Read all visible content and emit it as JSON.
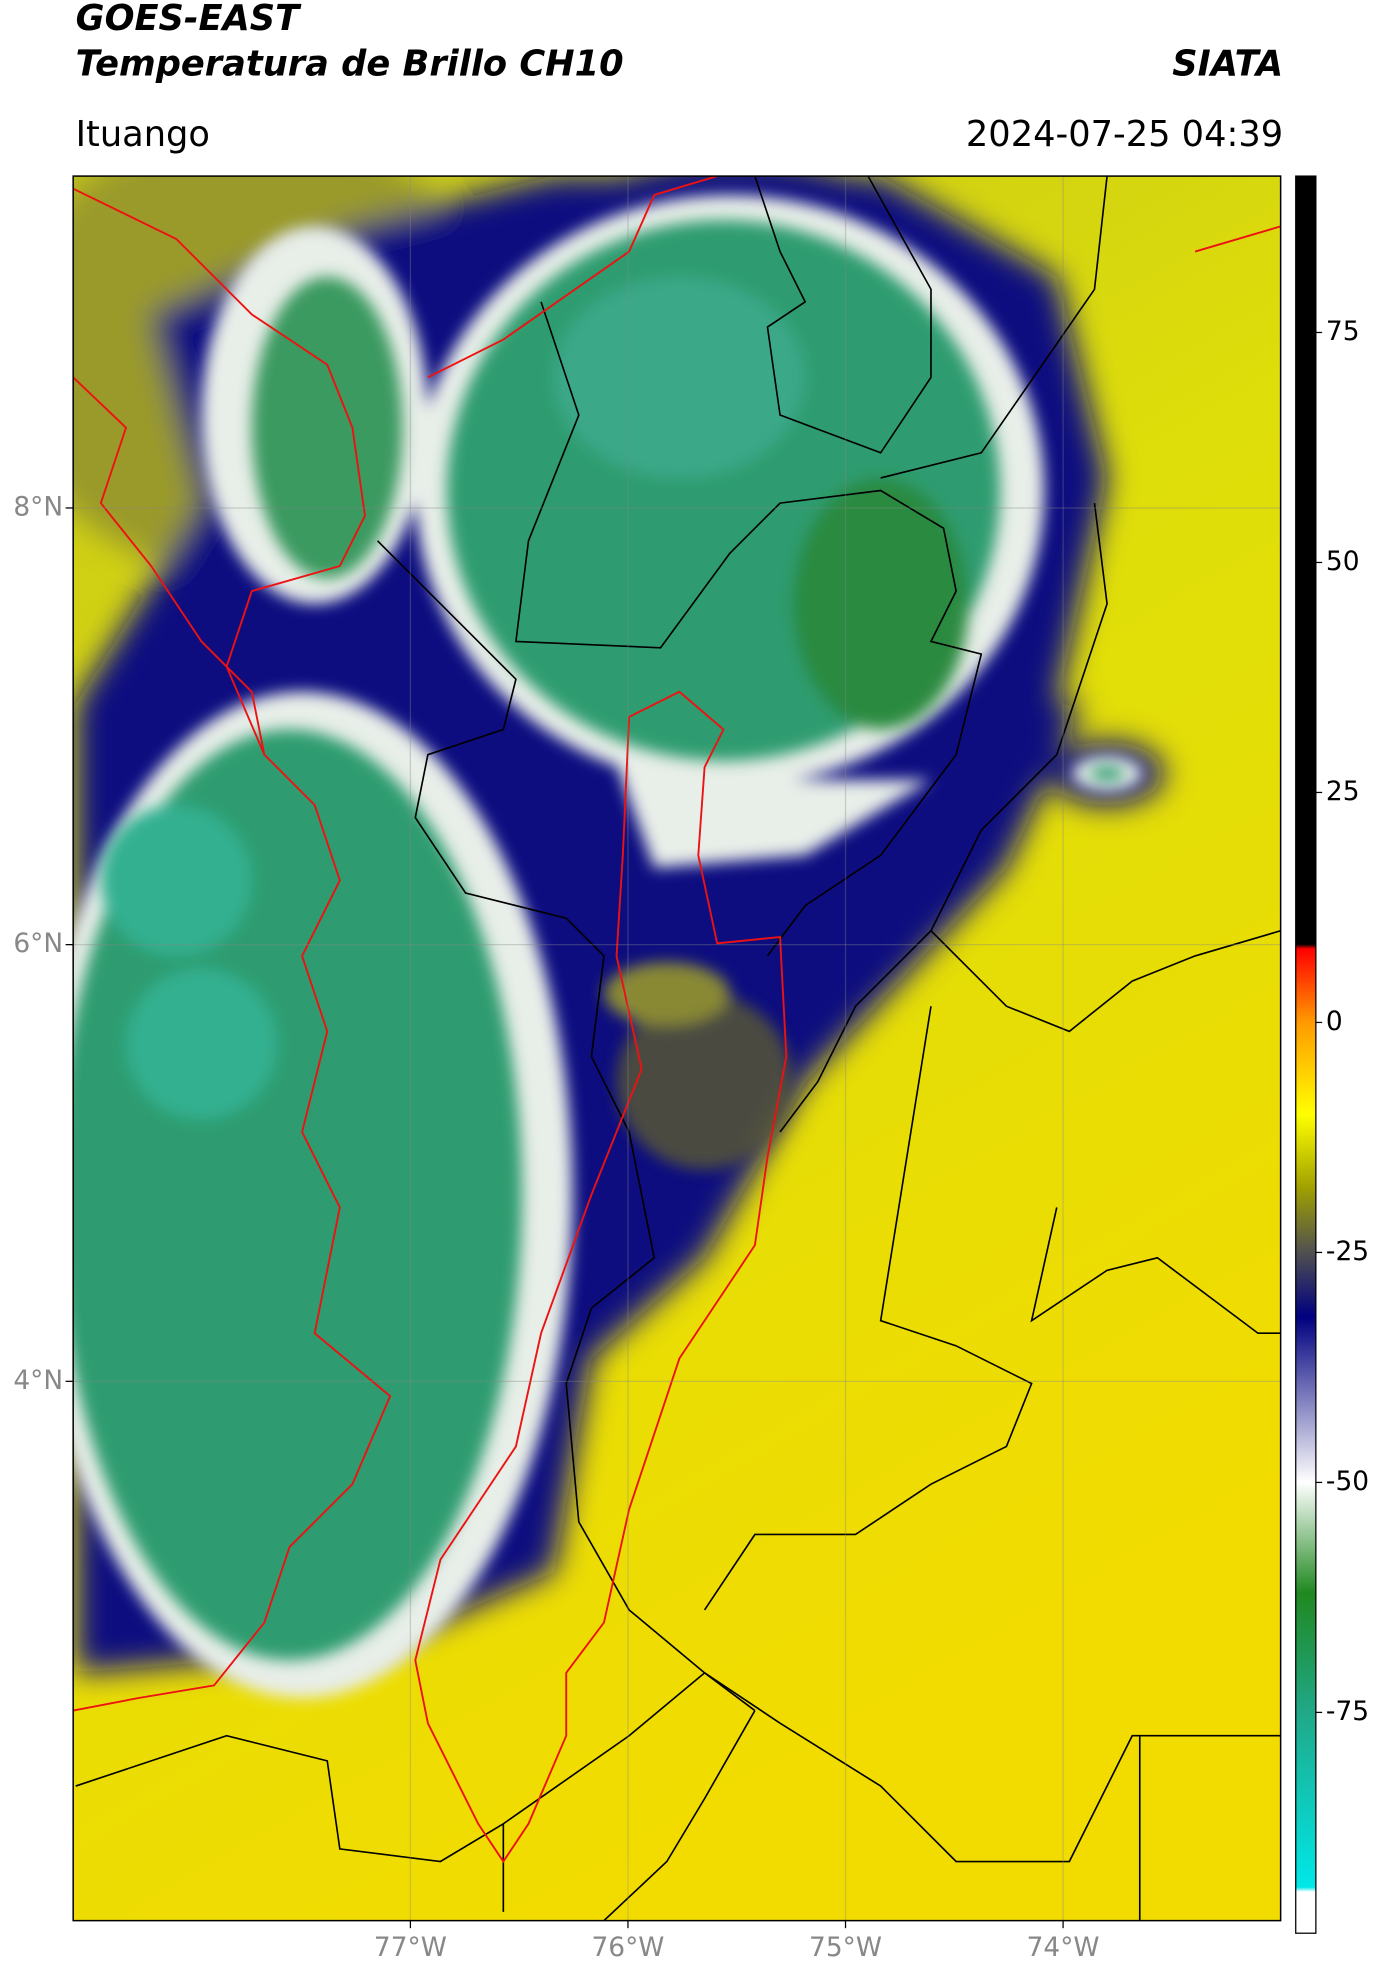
{
  "header": {
    "title": "GOES-EAST",
    "subtitle": "Temperatura de Brillo CH10",
    "brand": "SIATA",
    "location": "Ituango",
    "datetime": "2024-07-25 04:39"
  },
  "map": {
    "xlim": [
      -78.55,
      -73.0
    ],
    "ylim": [
      1.53,
      9.52
    ],
    "xticks": [
      {
        "value": -77,
        "label": "77°W"
      },
      {
        "value": -76,
        "label": "76°W"
      },
      {
        "value": -75,
        "label": "75°W"
      },
      {
        "value": -74,
        "label": "74°W"
      }
    ],
    "yticks": [
      {
        "value": 8,
        "label": "8°N"
      },
      {
        "value": 6,
        "label": "6°N"
      },
      {
        "value": 4,
        "label": "4°N"
      }
    ],
    "grid": true
  },
  "colorbar": {
    "lim": [
      -99,
      92
    ],
    "ticks": [
      75,
      50,
      25,
      0,
      -25,
      -50,
      -75
    ],
    "colormap": [
      {
        "value": -99,
        "color": "#ffffff"
      },
      {
        "value": -94.5,
        "color": "#ffffff"
      },
      {
        "value": -94,
        "color": "#00e8e8"
      },
      {
        "value": -75,
        "color": "#20a888"
      },
      {
        "value": -62,
        "color": "#208820"
      },
      {
        "value": -50,
        "color": "#ffffff"
      },
      {
        "value": -32,
        "color": "#000080"
      },
      {
        "value": -25,
        "color": "#505050"
      },
      {
        "value": -18,
        "color": "#a0a000"
      },
      {
        "value": -10,
        "color": "#ffff00"
      },
      {
        "value": 0,
        "color": "#ff9a00"
      },
      {
        "value": 8,
        "color": "#ff0000"
      },
      {
        "value": 8.5,
        "color": "#000000"
      },
      {
        "value": 92,
        "color": "#000000"
      }
    ]
  }
}
